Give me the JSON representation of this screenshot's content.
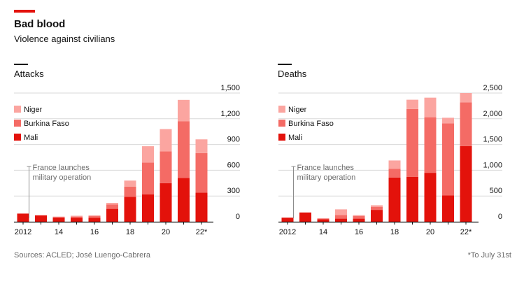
{
  "header": {
    "title": "Bad blood",
    "subtitle": "Violence against civilians"
  },
  "footer": {
    "source": "Sources: ACLED; José Luengo-Cabrera",
    "note": "*To July 31st"
  },
  "colors": {
    "niger": "#fba5a0",
    "burkina_faso": "#f46b65",
    "mali": "#e3120b",
    "accent": "#e3120b",
    "grid": "#d9d9d9"
  },
  "chart_data": [
    {
      "type": "bar",
      "stacked": true,
      "title": "Attacks",
      "categories": [
        "2012",
        "2013",
        "2014",
        "2015",
        "2016",
        "2017",
        "2018",
        "2019",
        "2020",
        "2021",
        "2022*"
      ],
      "x_tick_labels": [
        "2012",
        "",
        "14",
        "",
        "16",
        "",
        "18",
        "",
        "20",
        "",
        "22*"
      ],
      "series": [
        {
          "name": "Mali",
          "values": [
            95,
            75,
            50,
            45,
            45,
            150,
            290,
            320,
            450,
            510,
            340
          ]
        },
        {
          "name": "Burkina Faso",
          "values": [
            0,
            0,
            5,
            15,
            20,
            50,
            120,
            370,
            370,
            660,
            460
          ]
        },
        {
          "name": "Niger",
          "values": [
            0,
            0,
            5,
            10,
            10,
            20,
            70,
            190,
            260,
            250,
            160
          ]
        }
      ],
      "ylim": [
        0,
        1500
      ],
      "yticks": [
        0,
        300,
        600,
        900,
        1200,
        1500
      ],
      "ytick_labels": [
        "0",
        "300",
        "600",
        "900",
        "1,200",
        "1,500"
      ],
      "grid": true,
      "legend_position": "top-left",
      "annotation": {
        "text": [
          "France launches",
          "military operation"
        ],
        "category": "2013"
      }
    },
    {
      "type": "bar",
      "stacked": true,
      "title": "Deaths",
      "categories": [
        "2012",
        "2013",
        "2014",
        "2015",
        "2016",
        "2017",
        "2018",
        "2019",
        "2020",
        "2021",
        "2022*"
      ],
      "x_tick_labels": [
        "2012",
        "",
        "14",
        "",
        "16",
        "",
        "18",
        "",
        "20",
        "",
        "22*"
      ],
      "series": [
        {
          "name": "Mali",
          "values": [
            80,
            180,
            50,
            60,
            60,
            230,
            860,
            870,
            950,
            510,
            1470
          ]
        },
        {
          "name": "Burkina Faso",
          "values": [
            0,
            0,
            10,
            70,
            50,
            60,
            170,
            1320,
            1080,
            1400,
            850
          ]
        },
        {
          "name": "Niger",
          "values": [
            0,
            0,
            10,
            110,
            20,
            30,
            160,
            180,
            380,
            110,
            180
          ]
        }
      ],
      "ylim": [
        0,
        2500
      ],
      "yticks": [
        0,
        500,
        1000,
        1500,
        2000,
        2500
      ],
      "ytick_labels": [
        "0",
        "500",
        "1,000",
        "1,500",
        "2,000",
        "2,500"
      ],
      "grid": true,
      "legend_position": "top-left",
      "annotation": {
        "text": [
          "France launches",
          "military operation"
        ],
        "category": "2013"
      }
    }
  ]
}
